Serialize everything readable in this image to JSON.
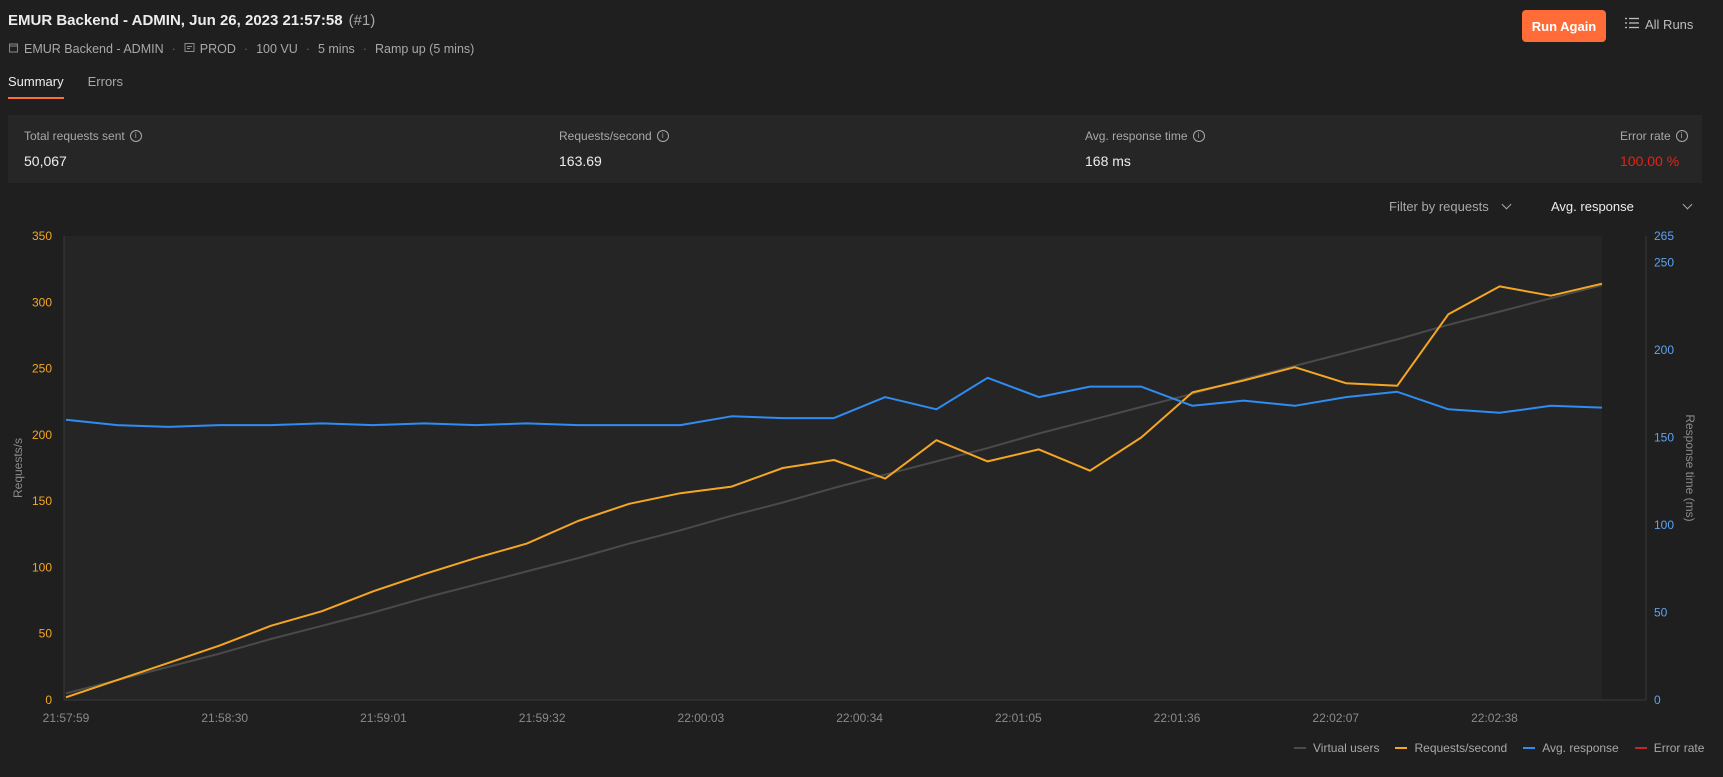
{
  "header": {
    "title": "EMUR Backend - ADMIN, Jun 26, 2023 21:57:58",
    "run_number": "(#1)",
    "meta": {
      "collection": "EMUR Backend - ADMIN",
      "environment": "PROD",
      "vus": "100 VU",
      "duration": "5 mins",
      "load_profile": "Ramp up (5 mins)"
    },
    "run_again_label": "Run Again",
    "all_runs_label": "All Runs"
  },
  "tabs": [
    {
      "label": "Summary",
      "active": true
    },
    {
      "label": "Errors",
      "active": false
    }
  ],
  "stats": {
    "total_requests": {
      "label": "Total requests sent",
      "value": "50,067"
    },
    "rps": {
      "label": "Requests/second",
      "value": "163.69"
    },
    "avg_response": {
      "label": "Avg. response time",
      "value": "168 ms"
    },
    "error_rate": {
      "label": "Error rate",
      "value": "100.00 %"
    }
  },
  "controls": {
    "filter_label": "Filter by requests",
    "metric_label": "Avg. response"
  },
  "colors": {
    "accent": "#ff6c37",
    "virtual_users": "#4a4a4a",
    "requests": "#f5a623",
    "avg_response": "#2f8cf2",
    "error_rate": "#c0262b"
  },
  "chart_data": {
    "type": "line",
    "ylabel": "Requests/s",
    "y2label": "Response time (ms)",
    "ylim": [
      0,
      350
    ],
    "y2lim": [
      0,
      265
    ],
    "yticks": [
      0,
      50,
      100,
      150,
      200,
      250,
      300,
      350
    ],
    "y2ticks": [
      0,
      50,
      100,
      150,
      200,
      250
    ],
    "y2top_label": "265",
    "xticks": [
      "21:57:59",
      "21:58:30",
      "21:59:01",
      "21:59:32",
      "22:00:03",
      "22:00:34",
      "22:01:05",
      "22:01:36",
      "22:02:07",
      "22:02:38"
    ],
    "x_start": "21:57:59",
    "x_interval_seconds": 10,
    "series": [
      {
        "name": "Virtual users",
        "axis": "left",
        "values": [
          5,
          15,
          25,
          35,
          46,
          56,
          66,
          77,
          87,
          97,
          107,
          118,
          128,
          139,
          149,
          160,
          170,
          180,
          190,
          201,
          211,
          221,
          231,
          242,
          252,
          262,
          272,
          283,
          293,
          303,
          313
        ]
      },
      {
        "name": "Requests/second",
        "axis": "left",
        "values": [
          2,
          15,
          28,
          41,
          56,
          67,
          82,
          95,
          107,
          118,
          135,
          148,
          156,
          161,
          175,
          181,
          167,
          196,
          180,
          189,
          173,
          198,
          232,
          241,
          251,
          239,
          237,
          291,
          312,
          305,
          314
        ]
      },
      {
        "name": "Avg. response",
        "axis": "right",
        "values": [
          160,
          157,
          156,
          157,
          157,
          158,
          157,
          158,
          157,
          158,
          157,
          157,
          157,
          162,
          161,
          161,
          173,
          166,
          184,
          173,
          179,
          179,
          168,
          171,
          168,
          173,
          176,
          166,
          164,
          168,
          167
        ]
      },
      {
        "name": "Error rate",
        "axis": "right",
        "values": []
      }
    ],
    "legend": [
      "Virtual users",
      "Requests/second",
      "Avg. response",
      "Error rate"
    ],
    "legend_position": "bottom-right"
  }
}
